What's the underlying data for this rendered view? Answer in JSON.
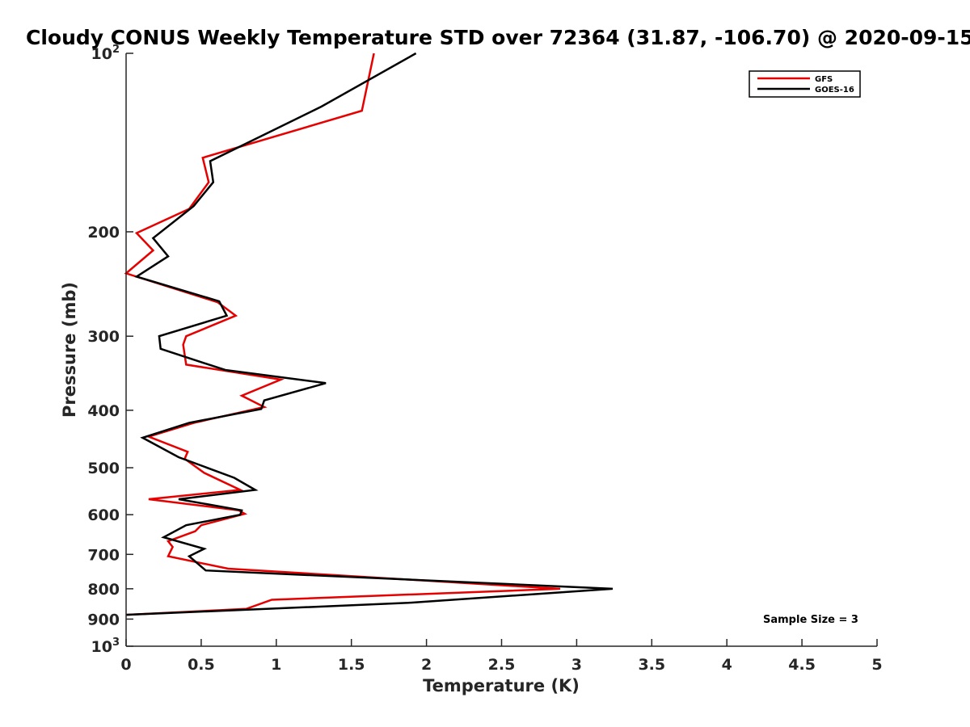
{
  "chart_data": {
    "type": "line",
    "title": "Cloudy CONUS Weekly Temperature STD over 72364 (31.87, -106.70) @ 2020-09-15",
    "xlabel": "Temperature (K)",
    "ylabel": "Pressure (mb)",
    "xlim": [
      0,
      5
    ],
    "ylim": [
      100,
      1000
    ],
    "y_scale": "log",
    "y_reversed": true,
    "grid": false,
    "legend_position": "top-right",
    "x_ticks": [
      0,
      0.5,
      1,
      1.5,
      2,
      2.5,
      3,
      3.5,
      4,
      4.5,
      5
    ],
    "x_tick_labels": [
      "0",
      "0.5",
      "1",
      "1.5",
      "2",
      "2.5",
      "3",
      "3.5",
      "4",
      "4.5",
      "5"
    ],
    "y_ticks": [
      100,
      200,
      300,
      400,
      500,
      600,
      700,
      800,
      900,
      1000
    ],
    "y_tick_labels": [
      "10^2",
      "200",
      "300",
      "400",
      "500",
      "600",
      "700",
      "800",
      "900",
      "10^3"
    ],
    "annotation": "Sample Size = 3",
    "series": [
      {
        "name": "GFS",
        "color": "#e60000",
        "points": [
          [
            1.65,
            100
          ],
          [
            1.57,
            125
          ],
          [
            0.51,
            150
          ],
          [
            0.55,
            165
          ],
          [
            0.42,
            183
          ],
          [
            0.07,
            201
          ],
          [
            0.18,
            215
          ],
          [
            0.0,
            235
          ],
          [
            0.61,
            263
          ],
          [
            0.73,
            277
          ],
          [
            0.4,
            300
          ],
          [
            0.38,
            310
          ],
          [
            0.4,
            335
          ],
          [
            1.03,
            355
          ],
          [
            0.77,
            378
          ],
          [
            0.92,
            395
          ],
          [
            0.45,
            420
          ],
          [
            0.15,
            443
          ],
          [
            0.41,
            470
          ],
          [
            0.39,
            483
          ],
          [
            0.52,
            510
          ],
          [
            0.76,
            545
          ],
          [
            0.15,
            565
          ],
          [
            0.75,
            590
          ],
          [
            0.79,
            598
          ],
          [
            0.5,
            625
          ],
          [
            0.46,
            640
          ],
          [
            0.28,
            665
          ],
          [
            0.31,
            680
          ],
          [
            0.28,
            705
          ],
          [
            0.68,
            740
          ],
          [
            2.89,
            800
          ],
          [
            0.97,
            835
          ],
          [
            0.8,
            865
          ],
          [
            0.0,
            885
          ]
        ]
      },
      {
        "name": "GOES-16",
        "color": "#000000",
        "points": [
          [
            1.93,
            100
          ],
          [
            1.3,
            123
          ],
          [
            0.56,
            152
          ],
          [
            0.58,
            165
          ],
          [
            0.45,
            181
          ],
          [
            0.18,
            205
          ],
          [
            0.28,
            220
          ],
          [
            0.07,
            238
          ],
          [
            0.62,
            262
          ],
          [
            0.67,
            277
          ],
          [
            0.22,
            300
          ],
          [
            0.23,
            315
          ],
          [
            0.66,
            342
          ],
          [
            1.33,
            360
          ],
          [
            0.92,
            385
          ],
          [
            0.9,
            398
          ],
          [
            0.42,
            420
          ],
          [
            0.11,
            445
          ],
          [
            0.35,
            480
          ],
          [
            0.72,
            520
          ],
          [
            0.86,
            545
          ],
          [
            0.35,
            565
          ],
          [
            0.77,
            590
          ],
          [
            0.76,
            600
          ],
          [
            0.4,
            625
          ],
          [
            0.25,
            655
          ],
          [
            0.52,
            685
          ],
          [
            0.42,
            705
          ],
          [
            0.53,
            745
          ],
          [
            3.24,
            800
          ],
          [
            1.88,
            845
          ],
          [
            0.0,
            885
          ]
        ]
      }
    ]
  }
}
